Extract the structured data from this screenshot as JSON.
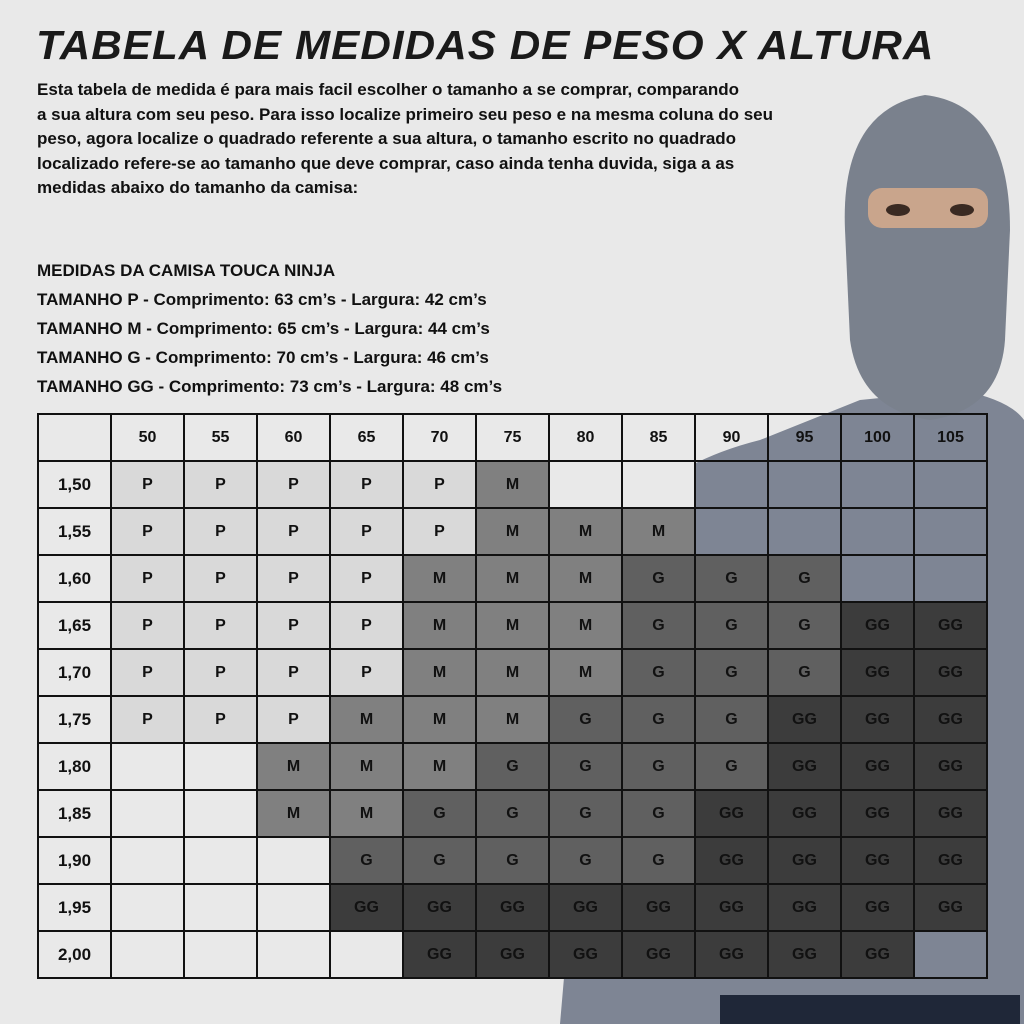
{
  "title": "TABELA DE MEDIDAS DE PESO X ALTURA",
  "intro_lines": [
    "Esta tabela de medida é para mais facil escolher o tamanho a se comprar, comparando",
    "a sua altura com seu peso. Para isso localize primeiro seu peso e na mesma coluna do seu",
    "peso, agora localize o quadrado referente a sua altura, o tamanho escrito no quadrado",
    "localizado refere-se ao tamanho que deve comprar, caso ainda tenha duvida, siga a as",
    "medidas abaixo do tamanho da camisa:"
  ],
  "measures": {
    "heading": "MEDIDAS DA CAMISA TOUCA NINJA",
    "lines": [
      "TAMANHO P - Comprimento: 63 cm’s - Largura: 42 cm’s",
      "TAMANHO M - Comprimento: 65 cm’s - Largura: 44 cm’s",
      "TAMANHO G - Comprimento: 70 cm’s - Largura: 46 cm’s",
      "TAMANHO GG - Comprimento: 73 cm’s - Largura: 48 cm’s"
    ]
  },
  "size_colors": {
    "P": "#d9d9d9",
    "M": "#808080",
    "G": "#606060",
    "GG": "#3c3c3c"
  },
  "table": {
    "weights": [
      "50",
      "55",
      "60",
      "65",
      "70",
      "75",
      "80",
      "85",
      "90",
      "95",
      "100",
      "105"
    ],
    "rows": [
      {
        "height": "1,50",
        "sizes": [
          "P",
          "P",
          "P",
          "P",
          "P",
          "M",
          "",
          "",
          "",
          "",
          "",
          ""
        ]
      },
      {
        "height": "1,55",
        "sizes": [
          "P",
          "P",
          "P",
          "P",
          "P",
          "M",
          "M",
          "M",
          "",
          "",
          "",
          ""
        ]
      },
      {
        "height": "1,60",
        "sizes": [
          "P",
          "P",
          "P",
          "P",
          "M",
          "M",
          "M",
          "G",
          "G",
          "G",
          "",
          ""
        ]
      },
      {
        "height": "1,65",
        "sizes": [
          "P",
          "P",
          "P",
          "P",
          "M",
          "M",
          "M",
          "G",
          "G",
          "G",
          "GG",
          "GG"
        ]
      },
      {
        "height": "1,70",
        "sizes": [
          "P",
          "P",
          "P",
          "P",
          "M",
          "M",
          "M",
          "G",
          "G",
          "G",
          "GG",
          "GG"
        ]
      },
      {
        "height": "1,75",
        "sizes": [
          "P",
          "P",
          "P",
          "M",
          "M",
          "M",
          "G",
          "G",
          "G",
          "GG",
          "GG",
          "GG"
        ]
      },
      {
        "height": "1,80",
        "sizes": [
          "",
          "",
          "M",
          "M",
          "M",
          "G",
          "G",
          "G",
          "G",
          "GG",
          "GG",
          "GG"
        ]
      },
      {
        "height": "1,85",
        "sizes": [
          "",
          "",
          "M",
          "M",
          "G",
          "G",
          "G",
          "G",
          "GG",
          "GG",
          "GG",
          "GG"
        ]
      },
      {
        "height": "1,90",
        "sizes": [
          "",
          "",
          "",
          "G",
          "G",
          "G",
          "G",
          "G",
          "GG",
          "GG",
          "GG",
          "GG"
        ]
      },
      {
        "height": "1,95",
        "sizes": [
          "",
          "",
          "",
          "GG",
          "GG",
          "GG",
          "GG",
          "GG",
          "GG",
          "GG",
          "GG",
          "GG"
        ]
      },
      {
        "height": "2,00",
        "sizes": [
          "",
          "",
          "",
          "",
          "GG",
          "GG",
          "GG",
          "GG",
          "GG",
          "GG",
          "GG",
          ""
        ]
      }
    ]
  }
}
